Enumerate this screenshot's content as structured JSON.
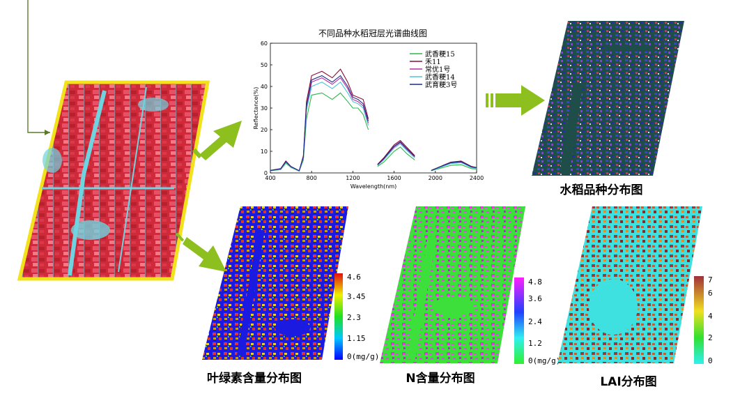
{
  "chart_data": {
    "type": "line",
    "title": "不同品种水稻冠层光谱曲线图",
    "xlabel": "Wavelength(nm)",
    "ylabel": "Reflectance(%)",
    "xlim": [
      400,
      2400
    ],
    "ylim": [
      0,
      60
    ],
    "xticks": [
      400,
      800,
      1200,
      1600,
      2000,
      2400
    ],
    "yticks": [
      0,
      10,
      20,
      30,
      40,
      50,
      60
    ],
    "legend_position": "top-right",
    "series": [
      {
        "name": "武香粳15",
        "color": "#2db84a",
        "values": [
          [
            400,
            1
          ],
          [
            500,
            1.5
          ],
          [
            550,
            4.5
          ],
          [
            600,
            2.5
          ],
          [
            680,
            0.8
          ],
          [
            720,
            6
          ],
          [
            750,
            25
          ],
          [
            800,
            36
          ],
          [
            900,
            37
          ],
          [
            1000,
            34
          ],
          [
            1080,
            37
          ],
          [
            1150,
            33
          ],
          [
            1200,
            30
          ],
          [
            1250,
            30
          ],
          [
            1300,
            27
          ],
          [
            1350,
            20
          ]
        ],
        "values2": [
          [
            1440,
            3
          ],
          [
            1500,
            5
          ],
          [
            1600,
            10
          ],
          [
            1660,
            12
          ],
          [
            1720,
            9
          ],
          [
            1800,
            6
          ]
        ],
        "values3": [
          [
            1960,
            1
          ],
          [
            2050,
            2.2
          ],
          [
            2150,
            3.5
          ],
          [
            2250,
            3.8
          ],
          [
            2350,
            2
          ],
          [
            2400,
            1.8
          ]
        ]
      },
      {
        "name": "禾11",
        "color": "#8b0c38",
        "values": [
          [
            400,
            1.2
          ],
          [
            500,
            2
          ],
          [
            550,
            5.5
          ],
          [
            600,
            3
          ],
          [
            680,
            1
          ],
          [
            720,
            8
          ],
          [
            750,
            33
          ],
          [
            800,
            45
          ],
          [
            900,
            47
          ],
          [
            1000,
            44
          ],
          [
            1080,
            48
          ],
          [
            1150,
            42
          ],
          [
            1200,
            36
          ],
          [
            1250,
            35
          ],
          [
            1300,
            34
          ],
          [
            1350,
            25
          ]
        ],
        "values2": [
          [
            1440,
            4
          ],
          [
            1500,
            7
          ],
          [
            1600,
            13
          ],
          [
            1660,
            15
          ],
          [
            1720,
            12
          ],
          [
            1800,
            8
          ]
        ],
        "values3": [
          [
            1960,
            1.2
          ],
          [
            2050,
            3
          ],
          [
            2150,
            5
          ],
          [
            2250,
            5.5
          ],
          [
            2350,
            3
          ],
          [
            2400,
            2.5
          ]
        ]
      },
      {
        "name": "常优1号",
        "color": "#b82fa0",
        "values": [
          [
            400,
            1.1
          ],
          [
            500,
            1.8
          ],
          [
            550,
            5
          ],
          [
            600,
            2.8
          ],
          [
            680,
            0.9
          ],
          [
            720,
            7
          ],
          [
            750,
            30
          ],
          [
            800,
            42
          ],
          [
            900,
            44
          ],
          [
            1000,
            41
          ],
          [
            1080,
            44
          ],
          [
            1150,
            39
          ],
          [
            1200,
            34
          ],
          [
            1250,
            33
          ],
          [
            1300,
            31
          ],
          [
            1350,
            23
          ]
        ],
        "values2": [
          [
            1440,
            3.6
          ],
          [
            1500,
            6.4
          ],
          [
            1600,
            12
          ],
          [
            1660,
            14
          ],
          [
            1720,
            11
          ],
          [
            1800,
            7.4
          ]
        ],
        "values3": [
          [
            1960,
            1.1
          ],
          [
            2050,
            2.8
          ],
          [
            2150,
            4.6
          ],
          [
            2250,
            5
          ],
          [
            2350,
            2.7
          ],
          [
            2400,
            2.3
          ]
        ]
      },
      {
        "name": "武香粳14",
        "color": "#4ec3d8",
        "values": [
          [
            400,
            1
          ],
          [
            500,
            1.7
          ],
          [
            550,
            4.8
          ],
          [
            600,
            2.7
          ],
          [
            680,
            0.9
          ],
          [
            720,
            7
          ],
          [
            750,
            29
          ],
          [
            800,
            40
          ],
          [
            900,
            42
          ],
          [
            1000,
            39
          ],
          [
            1080,
            42
          ],
          [
            1150,
            37
          ],
          [
            1200,
            33
          ],
          [
            1250,
            32
          ],
          [
            1300,
            30
          ],
          [
            1350,
            22
          ]
        ],
        "values2": [
          [
            1440,
            3.4
          ],
          [
            1500,
            6
          ],
          [
            1600,
            11.5
          ],
          [
            1660,
            13.5
          ],
          [
            1720,
            10.5
          ],
          [
            1800,
            7
          ]
        ],
        "values3": [
          [
            1960,
            1
          ],
          [
            2050,
            2.6
          ],
          [
            2150,
            4.3
          ],
          [
            2250,
            4.7
          ],
          [
            2350,
            2.5
          ],
          [
            2400,
            2.1
          ]
        ]
      },
      {
        "name": "武育粳3号",
        "color": "#1b2a8c",
        "values": [
          [
            400,
            1.1
          ],
          [
            500,
            1.9
          ],
          [
            550,
            5.2
          ],
          [
            600,
            2.9
          ],
          [
            680,
            1
          ],
          [
            720,
            7.5
          ],
          [
            750,
            31
          ],
          [
            800,
            43
          ],
          [
            900,
            45
          ],
          [
            1000,
            42
          ],
          [
            1080,
            45
          ],
          [
            1150,
            40
          ],
          [
            1200,
            35
          ],
          [
            1250,
            34
          ],
          [
            1300,
            32
          ],
          [
            1350,
            24
          ]
        ],
        "values2": [
          [
            1440,
            3.8
          ],
          [
            1500,
            6.6
          ],
          [
            1600,
            12.4
          ],
          [
            1660,
            14.4
          ],
          [
            1720,
            11.4
          ],
          [
            1800,
            7.6
          ]
        ],
        "values3": [
          [
            1960,
            1.1
          ],
          [
            2050,
            2.9
          ],
          [
            2150,
            4.8
          ],
          [
            2250,
            5.2
          ],
          [
            2350,
            2.8
          ],
          [
            2400,
            2.4
          ]
        ]
      }
    ]
  },
  "maps": {
    "variety_map": {
      "caption": "水稻品种分布图"
    },
    "chlorophyll_map": {
      "caption": "叶绿素含量分布图",
      "legend": [
        "4.6",
        "3.45",
        "2.3",
        "1.15",
        "0(mg/g)"
      ]
    },
    "nitrogen_map": {
      "caption": "N含量分布图",
      "legend": [
        "4.8",
        "3.6",
        "2.4",
        "1.2",
        "0(mg/g)"
      ]
    },
    "lai_map": {
      "caption": "LAI分布图",
      "legend": [
        "7",
        "6",
        "4",
        "2",
        "0"
      ]
    }
  },
  "colors": {
    "arrow": "#8dbf1e",
    "frame": "#f2e21c",
    "source_bg": "#d42d3d",
    "water": "#5fd6e0"
  }
}
